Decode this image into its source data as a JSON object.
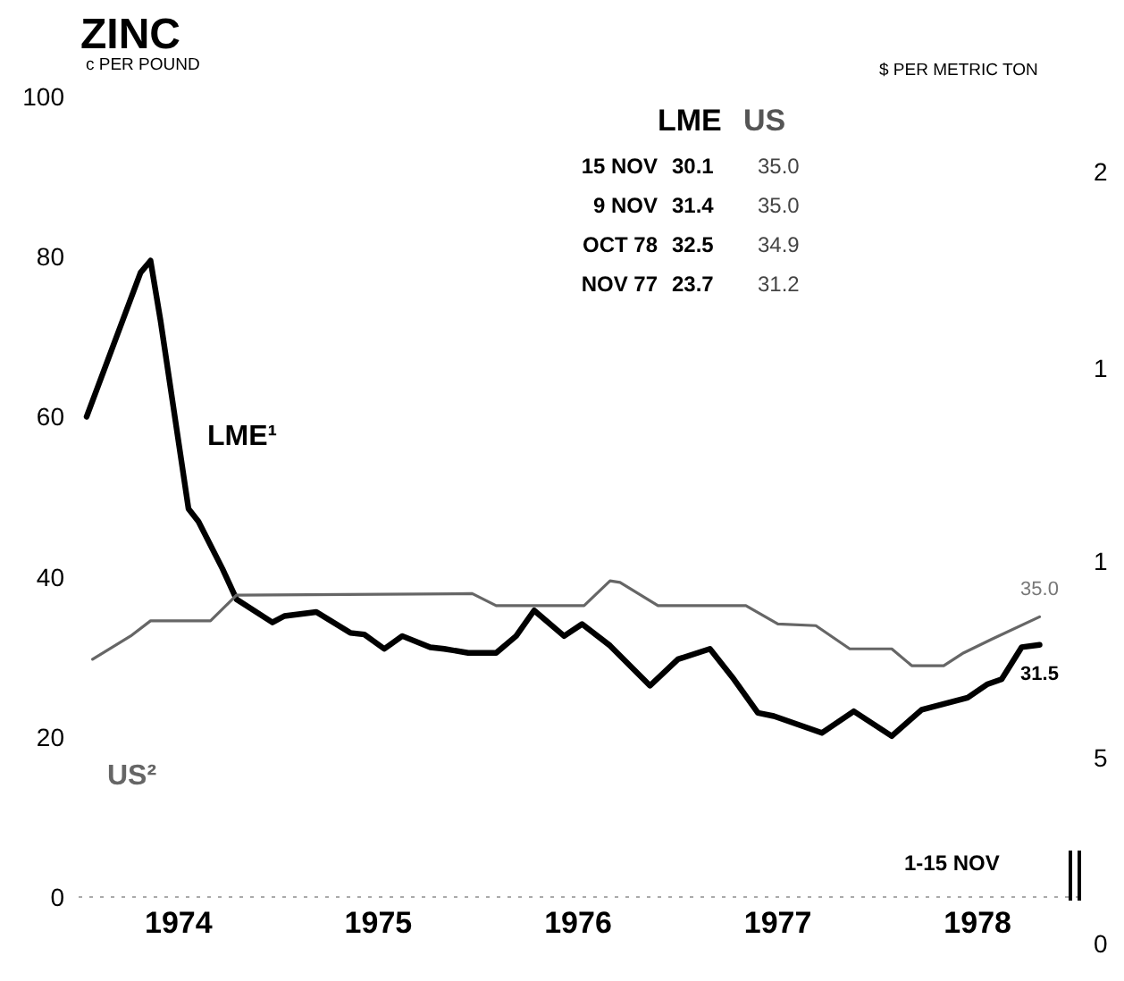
{
  "chart_data": {
    "type": "line",
    "title": "ZINC",
    "ylabel": "c PER POUND",
    "y2label": "$ PER METRIC TON",
    "xlim": [
      1974,
      1979
    ],
    "xticks": [
      {
        "value": 1974.5,
        "label": "1974"
      },
      {
        "value": 1975.5,
        "label": "1975"
      },
      {
        "value": 1976.5,
        "label": "1976"
      },
      {
        "value": 1977.5,
        "label": "1977"
      },
      {
        "value": 1978.5,
        "label": "1978"
      }
    ],
    "ylim": [
      0,
      100
    ],
    "yticks": [
      0,
      20,
      40,
      60,
      80,
      100
    ],
    "series": [
      {
        "name": "LME¹",
        "color": "#000000",
        "x": [
          1974.04,
          1974.31,
          1974.36,
          1974.41,
          1974.55,
          1974.6,
          1974.72,
          1974.79,
          1974.97,
          1975.03,
          1975.19,
          1975.36,
          1975.43,
          1975.53,
          1975.62,
          1975.76,
          1975.83,
          1975.95,
          1976.09,
          1976.19,
          1976.28,
          1976.43,
          1976.52,
          1976.66,
          1976.86,
          1977.0,
          1977.16,
          1977.28,
          1977.4,
          1977.48,
          1977.72,
          1977.88,
          1978.07,
          1978.22,
          1978.45,
          1978.55,
          1978.62,
          1978.72,
          1978.81
        ],
        "values": [
          60,
          78,
          79.5,
          72,
          48.5,
          46.9,
          41,
          37.2,
          34.3,
          35.1,
          35.6,
          33,
          32.8,
          31,
          32.6,
          31.2,
          31,
          30.5,
          30.5,
          32.6,
          35.8,
          32.6,
          34.1,
          31.4,
          26.4,
          29.7,
          31,
          27.2,
          23,
          22.6,
          20.5,
          23.2,
          20.1,
          23.4,
          24.9,
          26.6,
          27.2,
          31.2,
          31.5
        ]
      },
      {
        "name": "US²",
        "color": "#666666",
        "x": [
          1974.07,
          1974.26,
          1974.36,
          1974.66,
          1974.79,
          1975.97,
          1976.09,
          1976.53,
          1976.66,
          1976.71,
          1976.9,
          1977.34,
          1977.5,
          1977.69,
          1977.86,
          1978.07,
          1978.17,
          1978.33,
          1978.43,
          1978.57,
          1978.81
        ],
        "values": [
          29.7,
          32.6,
          34.5,
          34.5,
          37.7,
          37.9,
          36.4,
          36.4,
          39.5,
          39.3,
          36.4,
          36.4,
          34.1,
          33.9,
          31,
          31,
          28.9,
          28.9,
          30.5,
          32.2,
          35.0
        ]
      }
    ],
    "marker": "none",
    "line_style": "solid",
    "grid": false,
    "legend": false,
    "annotations": [
      "LME",
      "US",
      "15 NOV",
      "30.1",
      "35.0",
      "9 NOV",
      "31.4",
      "35.0",
      "OCT 78",
      "32.5",
      "34.9",
      "NOV 77",
      "23.7",
      "31.2",
      {
        "text": "31.5",
        "x": 1978.81,
        "y": 31.5
      },
      {
        "text": "35.0",
        "x": 1978.81,
        "y": 35.0
      },
      "1-15 NOV",
      "2",
      "1",
      "1",
      "5",
      "0"
    ]
  }
}
